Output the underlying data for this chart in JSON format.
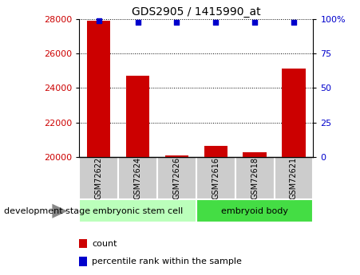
{
  "title": "GDS2905 / 1415990_at",
  "samples": [
    "GSM72622",
    "GSM72624",
    "GSM72626",
    "GSM72616",
    "GSM72618",
    "GSM72621"
  ],
  "counts": [
    27900,
    24700,
    20080,
    20650,
    20250,
    25150
  ],
  "percentile_ranks": [
    99,
    98,
    98,
    98,
    98,
    98
  ],
  "ylim_left": [
    20000,
    28000
  ],
  "ylim_right": [
    0,
    100
  ],
  "yticks_left": [
    20000,
    22000,
    24000,
    26000,
    28000
  ],
  "yticks_right": [
    0,
    25,
    50,
    75,
    100
  ],
  "bar_color": "#cc0000",
  "dot_color": "#0000cc",
  "group_labels": [
    "embryonic stem cell",
    "embryoid body"
  ],
  "group_ranges": [
    [
      0,
      3
    ],
    [
      3,
      6
    ]
  ],
  "group_colors": [
    "#bbffbb",
    "#44dd44"
  ],
  "sample_box_color": "#cccccc",
  "stage_label": "development stage",
  "legend_items": [
    "count",
    "percentile rank within the sample"
  ],
  "legend_colors": [
    "#cc0000",
    "#0000cc"
  ]
}
